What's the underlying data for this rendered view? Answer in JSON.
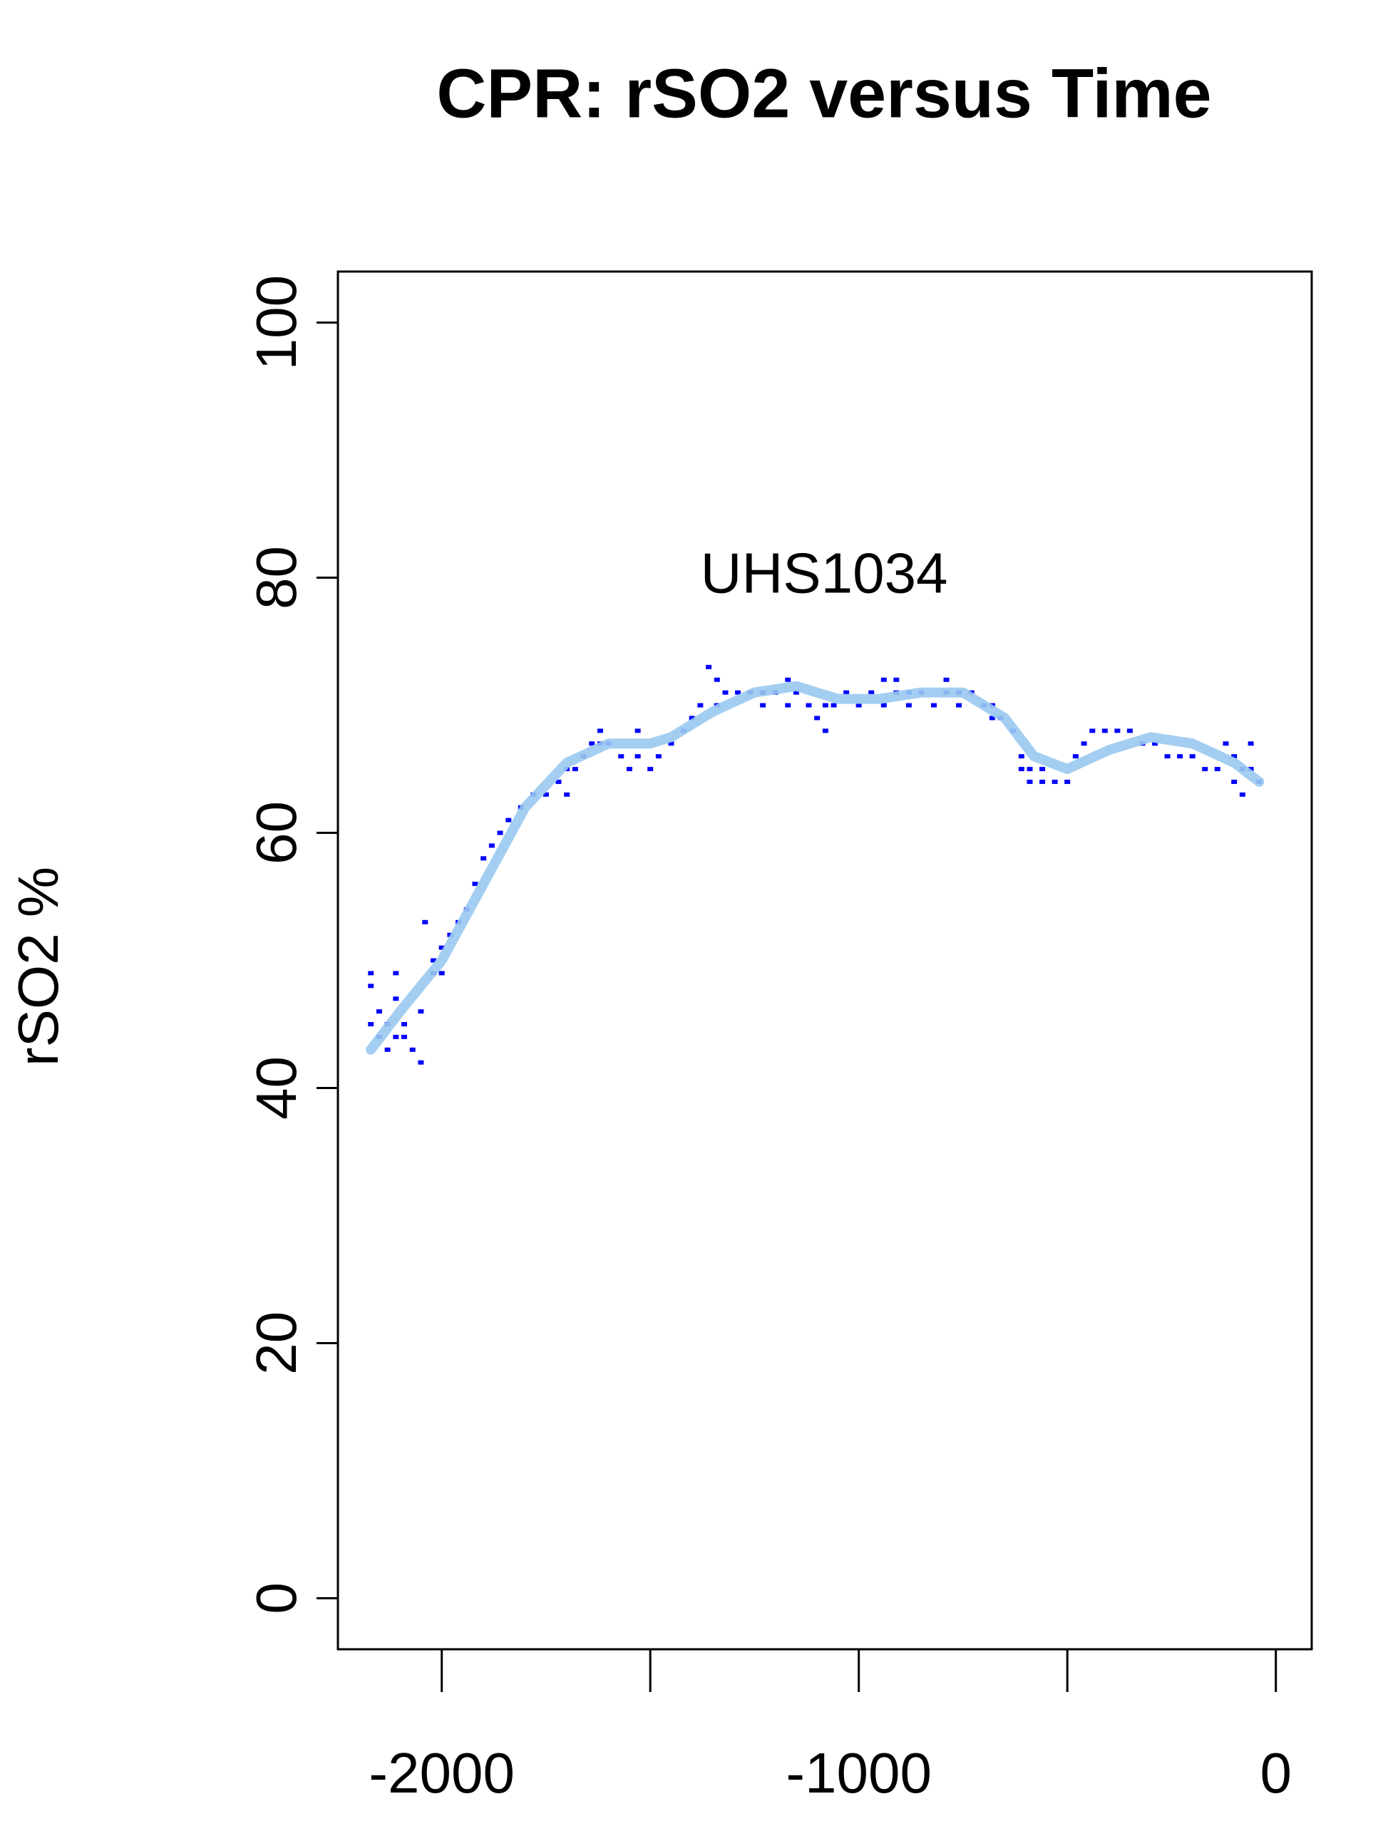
{
  "chart_data": {
    "type": "scatter",
    "title": "CPR: rSO2 versus Time",
    "y_label": "rSO2 %",
    "annotation": {
      "text": "UHS1034",
      "x": -1083,
      "y": 80
    },
    "xlim": [
      -2249,
      86
    ],
    "ylim": [
      -4,
      104
    ],
    "xticks": [
      -2000,
      {
        "value": -1500,
        "label": null
      },
      -1000,
      {
        "value": -500,
        "label": null
      },
      0
    ],
    "yticks": [
      0,
      20,
      40,
      60,
      80,
      100
    ],
    "points": {
      "color": "#0000ff",
      "x": [
        -2170,
        -2170,
        -2170,
        -2150,
        -2150,
        -2130,
        -2130,
        -2110,
        -2110,
        -2110,
        -2090,
        -2090,
        -2070,
        -2050,
        -2050,
        -2040,
        -2020,
        -2020,
        -2000,
        -2000,
        -1980,
        -1960,
        -1940,
        -1920,
        -1900,
        -1880,
        -1860,
        -1840,
        -1810,
        -1780,
        -1750,
        -1720,
        -1700,
        -1700,
        -1680,
        -1660,
        -1640,
        -1620,
        -1620,
        -1600,
        -1570,
        -1550,
        -1530,
        -1530,
        -1500,
        -1480,
        -1450,
        -1420,
        -1400,
        -1380,
        -1360,
        -1340,
        -1340,
        -1320,
        -1290,
        -1260,
        -1230,
        -1230,
        -1200,
        -1170,
        -1170,
        -1150,
        -1120,
        -1100,
        -1080,
        -1080,
        -1060,
        -1030,
        -1000,
        -970,
        -940,
        -940,
        -910,
        -910,
        -880,
        -880,
        -850,
        -820,
        -790,
        -790,
        -760,
        -760,
        -730,
        -700,
        -680,
        -680,
        -660,
        -630,
        -610,
        -610,
        -590,
        -590,
        -560,
        -560,
        -530,
        -500,
        -480,
        -460,
        -440,
        -410,
        -380,
        -350,
        -320,
        -290,
        -260,
        -230,
        -200,
        -170,
        -140,
        -120,
        -100,
        -100,
        -80,
        -80,
        -60,
        -60,
        -40
      ],
      "y": [
        49,
        48,
        45,
        46,
        44,
        45,
        43,
        49,
        47,
        44,
        45,
        44,
        43,
        42,
        46,
        53,
        50,
        49,
        51,
        49,
        52,
        53,
        54,
        56,
        58,
        59,
        60,
        61,
        62,
        63,
        63,
        64,
        65,
        63,
        65,
        66,
        67,
        67,
        68,
        67,
        66,
        65,
        66,
        68,
        65,
        66,
        67,
        68,
        69,
        70,
        73,
        72,
        70,
        71,
        71,
        71,
        71,
        70,
        71,
        72,
        70,
        71,
        70,
        69,
        68,
        70,
        70,
        71,
        70,
        71,
        72,
        70,
        72,
        71,
        71,
        70,
        71,
        70,
        72,
        71,
        71,
        70,
        71,
        70,
        69,
        70,
        69,
        68,
        66,
        65,
        65,
        64,
        65,
        64,
        64,
        64,
        66,
        67,
        68,
        68,
        68,
        68,
        67,
        67,
        66,
        66,
        66,
        65,
        65,
        67,
        66,
        64,
        63,
        65,
        67,
        65,
        64
      ]
    },
    "smooth": {
      "color": "#99c9ef",
      "x": [
        -2170,
        -2100,
        -2000,
        -1900,
        -1800,
        -1700,
        -1600,
        -1500,
        -1450,
        -1350,
        -1250,
        -1150,
        -1050,
        -950,
        -850,
        -750,
        -650,
        -580,
        -500,
        -400,
        -300,
        -200,
        -100,
        -40
      ],
      "y": [
        43,
        46,
        50,
        56,
        62,
        65.5,
        67,
        67,
        67.5,
        69.5,
        71,
        71.5,
        70.5,
        70.5,
        71,
        71,
        69,
        66,
        65,
        66.5,
        67.5,
        67,
        65.5,
        64
      ]
    }
  }
}
